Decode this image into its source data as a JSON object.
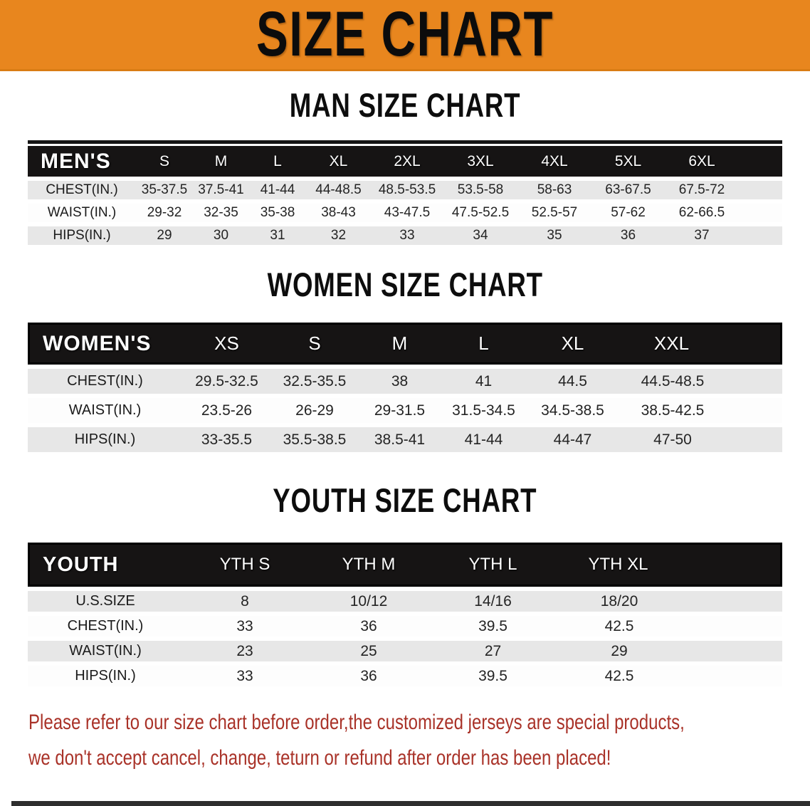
{
  "banner": {
    "title": "SIZE CHART"
  },
  "colors": {
    "banner_bg": "#E8861E",
    "table_header_bg": "#161414",
    "row_alt_bg": "#E7E7E7",
    "disclaimer_text": "#A93228"
  },
  "sections": [
    {
      "title": "MAN SIZE CHART",
      "table": {
        "header_label": "MEN'S",
        "columns": [
          "S",
          "M",
          "L",
          "XL",
          "2XL",
          "3XL",
          "4XL",
          "5XL",
          "6XL"
        ],
        "rows": [
          {
            "label": "CHEST(IN.)",
            "values": [
              "35-37.5",
              "37.5-41",
              "41-44",
              "44-48.5",
              "48.5-53.5",
              "53.5-58",
              "58-63",
              "63-67.5",
              "67.5-72"
            ]
          },
          {
            "label": "WAIST(IN.)",
            "values": [
              "29-32",
              "32-35",
              "35-38",
              "38-43",
              "43-47.5",
              "47.5-52.5",
              "52.5-57",
              "57-62",
              "62-66.5"
            ]
          },
          {
            "label": "HIPS(IN.)",
            "values": [
              "29",
              "30",
              "31",
              "32",
              "33",
              "34",
              "35",
              "36",
              "37"
            ]
          }
        ]
      }
    },
    {
      "title": "WOMEN SIZE CHART",
      "table": {
        "header_label": "WOMEN'S",
        "columns": [
          "XS",
          "S",
          "M",
          "L",
          "XL",
          "XXL"
        ],
        "rows": [
          {
            "label": "CHEST(IN.)",
            "values": [
              "29.5-32.5",
              "32.5-35.5",
              "38",
              "41",
              "44.5",
              "44.5-48.5"
            ]
          },
          {
            "label": "WAIST(IN.)",
            "values": [
              "23.5-26",
              "26-29",
              "29-31.5",
              "31.5-34.5",
              "34.5-38.5",
              "38.5-42.5"
            ]
          },
          {
            "label": "HIPS(IN.)",
            "values": [
              "33-35.5",
              "35.5-38.5",
              "38.5-41",
              "41-44",
              "44-47",
              "47-50"
            ]
          }
        ]
      }
    },
    {
      "title": "YOUTH SIZE CHART",
      "table": {
        "header_label": "YOUTH",
        "columns": [
          "YTH S",
          "YTH M",
          "YTH L",
          "YTH XL"
        ],
        "rows": [
          {
            "label": "U.S.SIZE",
            "values": [
              "8",
              "10/12",
              "14/16",
              "18/20"
            ]
          },
          {
            "label": "CHEST(IN.)",
            "values": [
              "33",
              "36",
              "39.5",
              "42.5"
            ]
          },
          {
            "label": "WAIST(IN.)",
            "values": [
              "23",
              "25",
              "27",
              "29"
            ]
          },
          {
            "label": "HIPS(IN.)",
            "values": [
              "33",
              "36",
              "39.5",
              "42.5"
            ]
          }
        ]
      }
    }
  ],
  "disclaimer": {
    "line1": "Please refer to our size chart before order,the customized jerseys are special products,",
    "line2": "we don't accept cancel, change, teturn or refund after order has been placed!"
  }
}
